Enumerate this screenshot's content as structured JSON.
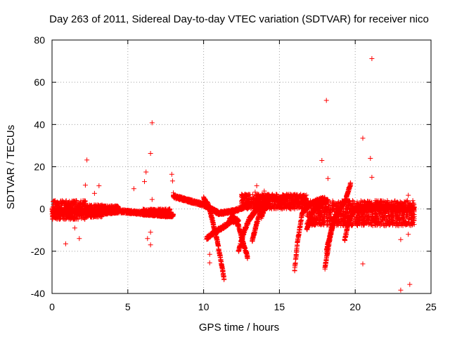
{
  "chart_data": {
    "type": "scatter",
    "title": "Day 263 of 2011, Sidereal Day-to-day VTEC variation (SDTVAR) for receiver nico",
    "xlabel": "GPS time / hours",
    "ylabel": "SDTVAR / TECUs",
    "xlim": [
      0,
      25
    ],
    "ylim": [
      -40,
      80
    ],
    "xticks": [
      0,
      5,
      10,
      15,
      20,
      25
    ],
    "yticks": [
      -40,
      -20,
      0,
      20,
      40,
      60,
      80
    ],
    "xtick_labels": [
      "0",
      "5",
      "10",
      "15",
      "20",
      "25"
    ],
    "ytick_labels": [
      "-40",
      "-20",
      "0",
      "20",
      "40",
      "60",
      "80"
    ],
    "grid": true,
    "marker": "+",
    "color": "#ff0000",
    "series": [
      {
        "name": "SDTVAR",
        "bands": [
          {
            "x": [
              0.0,
              2.2
            ],
            "y": [
              -5,
              4
            ]
          },
          {
            "x": [
              2.2,
              3.3
            ],
            "y": [
              -4,
              2
            ]
          },
          {
            "x": [
              3.3,
              4.4
            ],
            "y": [
              -2,
              1.5
            ]
          },
          {
            "x": [
              6.0,
              7.8
            ],
            "y": [
              -3,
              0
            ]
          },
          {
            "x": [
              12.5,
              16.8
            ],
            "y": [
              0,
              7
            ]
          },
          {
            "x": [
              16.8,
              23.9
            ],
            "y": [
              -8,
              4
            ]
          }
        ],
        "tracks": [
          {
            "x": [
              0.0,
              1.5,
              3.0,
              4.5,
              6.0,
              7.5,
              8.0
            ],
            "y": [
              -1,
              -1,
              -2,
              -1,
              -2,
              -3,
              -3
            ]
          },
          {
            "x": [
              8.0,
              9.0,
              10.0,
              10.5,
              11.0,
              12.0,
              13.0
            ],
            "y": [
              6,
              4,
              2,
              0,
              -2,
              -1,
              2
            ]
          },
          {
            "x": [
              10.0,
              10.3,
              10.6,
              10.9,
              11.2,
              11.35
            ],
            "y": [
              5,
              2,
              -6,
              -15,
              -27,
              -33
            ]
          },
          {
            "x": [
              10.2,
              10.7,
              11.2,
              11.8,
              12.3
            ],
            "y": [
              -14,
              -11,
              -9,
              -6,
              -5
            ]
          },
          {
            "x": [
              11.7,
              12.0,
              12.3,
              12.6,
              12.9
            ],
            "y": [
              -5,
              -4,
              -8,
              -16,
              -23
            ]
          },
          {
            "x": [
              12.3,
              12.7,
              13.0,
              13.5,
              14.0
            ],
            "y": [
              -20,
              -10,
              -5,
              0,
              2
            ]
          },
          {
            "x": [
              13.2,
              13.5,
              13.8
            ],
            "y": [
              -15,
              -7,
              0
            ]
          },
          {
            "x": [
              13.8,
              14.0,
              14.3
            ],
            "y": [
              -4,
              0,
              2
            ]
          },
          {
            "x": [
              16.0,
              16.2,
              16.5,
              17.0,
              17.5,
              18.0
            ],
            "y": [
              -29,
              -15,
              -2,
              2,
              4,
              5
            ]
          },
          {
            "x": [
              16.8,
              17.0,
              17.3,
              17.8,
              18.2
            ],
            "y": [
              -10,
              -5,
              0,
              3,
              4
            ]
          },
          {
            "x": [
              18.0,
              18.3,
              18.6,
              19.0,
              19.4,
              19.7
            ],
            "y": [
              -28,
              -15,
              -5,
              0,
              5,
              12
            ]
          },
          {
            "x": [
              18.1,
              18.4,
              18.8
            ],
            "y": [
              -20,
              -10,
              -3
            ]
          },
          {
            "x": [
              19.3,
              19.6,
              20.0
            ],
            "y": [
              -15,
              -5,
              0
            ]
          },
          {
            "x": [
              20.0,
              21.0,
              22.0,
              23.0,
              23.9
            ],
            "y": [
              0,
              1,
              1,
              0,
              0
            ]
          }
        ],
        "points": [
          [
            0.9,
            -16.5
          ],
          [
            1.5,
            -9
          ],
          [
            1.8,
            -14
          ],
          [
            2.3,
            23.2
          ],
          [
            2.2,
            11.3
          ],
          [
            2.8,
            7.4
          ],
          [
            3.1,
            11
          ],
          [
            5.4,
            9.6
          ],
          [
            6.1,
            13
          ],
          [
            6.2,
            17.5
          ],
          [
            6.3,
            -14
          ],
          [
            6.5,
            26.3
          ],
          [
            6.6,
            40.8
          ],
          [
            6.5,
            -11
          ],
          [
            6.5,
            -17
          ],
          [
            6.6,
            4.5
          ],
          [
            7.9,
            16.4
          ],
          [
            7.95,
            13.3
          ],
          [
            8.0,
            7.6
          ],
          [
            10.4,
            -21.5
          ],
          [
            10.4,
            -25.5
          ],
          [
            13.4,
            8
          ],
          [
            13.5,
            11
          ],
          [
            14.0,
            8.5
          ],
          [
            17.8,
            23
          ],
          [
            18.1,
            51.4
          ],
          [
            18.2,
            14.4
          ],
          [
            20.5,
            33.5
          ],
          [
            20.5,
            -26
          ],
          [
            21.0,
            24
          ],
          [
            21.1,
            15
          ],
          [
            21.1,
            71.2
          ],
          [
            23.0,
            -14.5
          ],
          [
            23.0,
            -38.4
          ],
          [
            23.5,
            6.5
          ],
          [
            23.5,
            -12
          ],
          [
            23.6,
            -35.7
          ]
        ]
      }
    ]
  }
}
